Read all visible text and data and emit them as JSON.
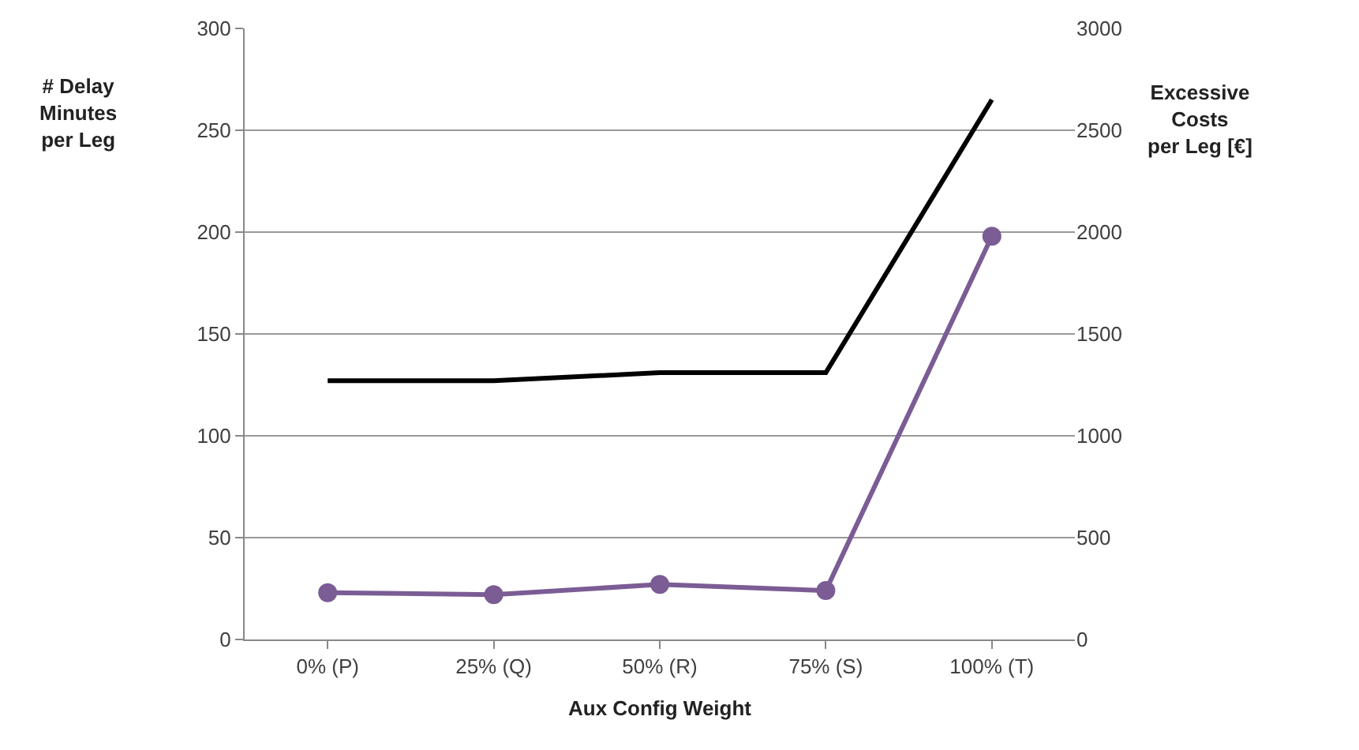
{
  "chart_data": {
    "type": "line",
    "xlabel": "Aux Config Weight",
    "ylabel": "# Delay\nMinutes\nper Leg",
    "y2label": "Excessive\nCosts\nper Leg [€]",
    "categories": [
      "0% (P)",
      "25% (Q)",
      "50% (R)",
      "75% (S)",
      "100% (T)"
    ],
    "series": [
      {
        "color": "#000000",
        "values": [
          1270,
          1270,
          1310,
          1310,
          2650
        ],
        "marker": "none",
        "axis": "y2"
      },
      {
        "color": "#7b5c94",
        "values": [
          23,
          22,
          27,
          24,
          198
        ],
        "marker": "circle"
      }
    ],
    "ylim": [
      0,
      300
    ],
    "yticks": [
      0,
      50,
      100,
      150,
      200,
      250,
      300
    ],
    "y2lim": [
      0,
      3000
    ],
    "y2ticks": [
      0,
      500,
      1000,
      1500,
      2000,
      2500,
      3000
    ],
    "grid": "y",
    "legend": false
  }
}
